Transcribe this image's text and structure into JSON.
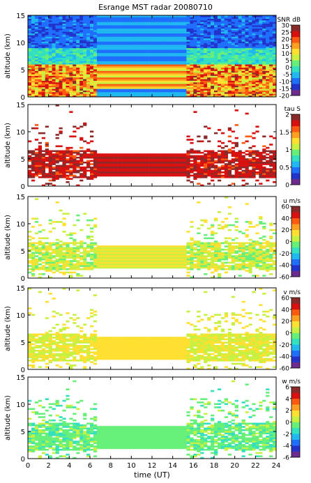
{
  "title": "Esrange MST radar 20080710",
  "colormap": [
    "#6d2b8f",
    "#2233cc",
    "#1f6fff",
    "#1fb8f0",
    "#33e0c0",
    "#66f07a",
    "#c8f040",
    "#ffe030",
    "#ffa020",
    "#ff5a10",
    "#d81010",
    "#8a2a2a"
  ],
  "chart_data": [
    {
      "id": "snr",
      "type": "heatmap",
      "ylabel": "altitude (km)",
      "ylim": [
        0,
        15
      ],
      "yticks": [
        0,
        5,
        10,
        15
      ],
      "xlim": [
        0,
        24
      ],
      "colorbar": {
        "label": "SNR dB",
        "range": [
          -20,
          30
        ],
        "ticks": [
          -20,
          -15,
          -10,
          -5,
          0,
          5,
          10,
          15,
          20,
          25,
          30
        ]
      },
      "data_gap_hours": [
        6.8,
        15.3
      ],
      "fill_fraction": 1.0
    },
    {
      "id": "tau",
      "type": "heatmap",
      "ylabel": "altitude (km)",
      "ylim": [
        0,
        15
      ],
      "yticks": [
        0,
        5,
        10,
        15
      ],
      "xlim": [
        0,
        24
      ],
      "colorbar": {
        "label": "tau S",
        "range": [
          0,
          2
        ],
        "ticks": [
          0,
          0.5,
          1,
          1.5,
          2
        ]
      },
      "data_gap_hours": [
        6.8,
        15.3
      ],
      "fill_fraction": 0.35
    },
    {
      "id": "u",
      "type": "heatmap",
      "ylabel": "altitude (km)",
      "ylim": [
        0,
        15
      ],
      "yticks": [
        0,
        5,
        10,
        15
      ],
      "xlim": [
        0,
        24
      ],
      "colorbar": {
        "label": "u m/s",
        "range": [
          -60,
          60
        ],
        "ticks": [
          -60,
          -40,
          -20,
          0,
          20,
          40,
          60
        ]
      },
      "data_gap_hours": [
        6.8,
        15.3
      ],
      "fill_fraction": 0.4
    },
    {
      "id": "v",
      "type": "heatmap",
      "ylabel": "altitude (km)",
      "ylim": [
        0,
        15
      ],
      "yticks": [
        0,
        5,
        10,
        15
      ],
      "xlim": [
        0,
        24
      ],
      "colorbar": {
        "label": "v m/s",
        "range": [
          -60,
          60
        ],
        "ticks": [
          -60,
          -40,
          -20,
          0,
          20,
          40,
          60
        ]
      },
      "data_gap_hours": [
        6.8,
        15.3
      ],
      "fill_fraction": 0.4
    },
    {
      "id": "w",
      "type": "heatmap",
      "ylabel": "altitude (km)",
      "ylim": [
        0,
        15
      ],
      "yticks": [
        0,
        5,
        10,
        15
      ],
      "xlim": [
        0,
        24
      ],
      "xlabel": "time (UT)",
      "xticks": [
        0,
        2,
        4,
        6,
        8,
        10,
        12,
        14,
        16,
        18,
        20,
        22,
        24
      ],
      "colorbar": {
        "label": "w m/s",
        "range": [
          -6,
          6
        ],
        "ticks": [
          -6,
          -4,
          -2,
          0,
          2,
          4,
          6
        ]
      },
      "data_gap_hours": [
        6.8,
        15.3
      ],
      "fill_fraction": 0.55
    }
  ]
}
